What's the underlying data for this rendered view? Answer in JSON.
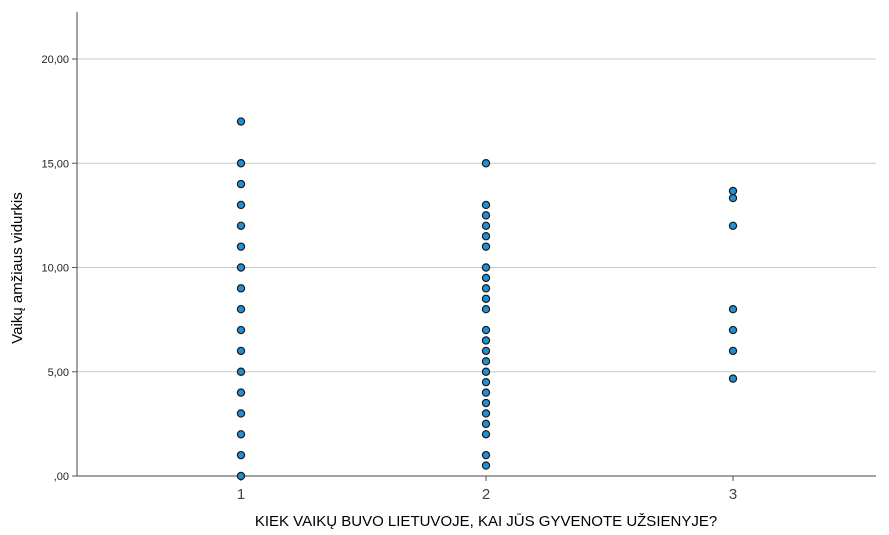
{
  "chart_data": {
    "type": "scatter",
    "title": "",
    "xlabel": "KIEK VAIKŲ BUVO LIETUVOJE, KAI JŪS GYVENOTE UŽSIENYJE?",
    "ylabel": "Vaikų amžiaus vidurkis",
    "x_categories": [
      "1",
      "2",
      "3"
    ],
    "ylim": [
      0,
      22
    ],
    "y_ticks": [
      0,
      5,
      10,
      15,
      20
    ],
    "y_tick_labels": [
      ",00",
      "5,00",
      "10,00",
      "15,00",
      "20,00"
    ],
    "grid": "horizontal",
    "marker_color": "#1f8fd8",
    "marker_edge_color": "#1a1a1a",
    "points": [
      {
        "x": 1,
        "y": 17
      },
      {
        "x": 1,
        "y": 15
      },
      {
        "x": 1,
        "y": 14
      },
      {
        "x": 1,
        "y": 13
      },
      {
        "x": 1,
        "y": 12
      },
      {
        "x": 1,
        "y": 11
      },
      {
        "x": 1,
        "y": 10
      },
      {
        "x": 1,
        "y": 9
      },
      {
        "x": 1,
        "y": 8
      },
      {
        "x": 1,
        "y": 7
      },
      {
        "x": 1,
        "y": 6
      },
      {
        "x": 1,
        "y": 5
      },
      {
        "x": 1,
        "y": 4
      },
      {
        "x": 1,
        "y": 3
      },
      {
        "x": 1,
        "y": 2
      },
      {
        "x": 1,
        "y": 1
      },
      {
        "x": 1,
        "y": 0
      },
      {
        "x": 2,
        "y": 15
      },
      {
        "x": 2,
        "y": 13
      },
      {
        "x": 2,
        "y": 12.5
      },
      {
        "x": 2,
        "y": 12
      },
      {
        "x": 2,
        "y": 11.5
      },
      {
        "x": 2,
        "y": 11
      },
      {
        "x": 2,
        "y": 10
      },
      {
        "x": 2,
        "y": 9.5
      },
      {
        "x": 2,
        "y": 9
      },
      {
        "x": 2,
        "y": 8.5
      },
      {
        "x": 2,
        "y": 8
      },
      {
        "x": 2,
        "y": 7
      },
      {
        "x": 2,
        "y": 6.5
      },
      {
        "x": 2,
        "y": 6
      },
      {
        "x": 2,
        "y": 5.5
      },
      {
        "x": 2,
        "y": 5
      },
      {
        "x": 2,
        "y": 4.5
      },
      {
        "x": 2,
        "y": 4
      },
      {
        "x": 2,
        "y": 3.5
      },
      {
        "x": 2,
        "y": 3
      },
      {
        "x": 2,
        "y": 2.5
      },
      {
        "x": 2,
        "y": 2
      },
      {
        "x": 2,
        "y": 1
      },
      {
        "x": 2,
        "y": 0.5
      },
      {
        "x": 3,
        "y": 13.67
      },
      {
        "x": 3,
        "y": 13.33
      },
      {
        "x": 3,
        "y": 12
      },
      {
        "x": 3,
        "y": 8
      },
      {
        "x": 3,
        "y": 7
      },
      {
        "x": 3,
        "y": 6
      },
      {
        "x": 3,
        "y": 4.67
      }
    ]
  }
}
